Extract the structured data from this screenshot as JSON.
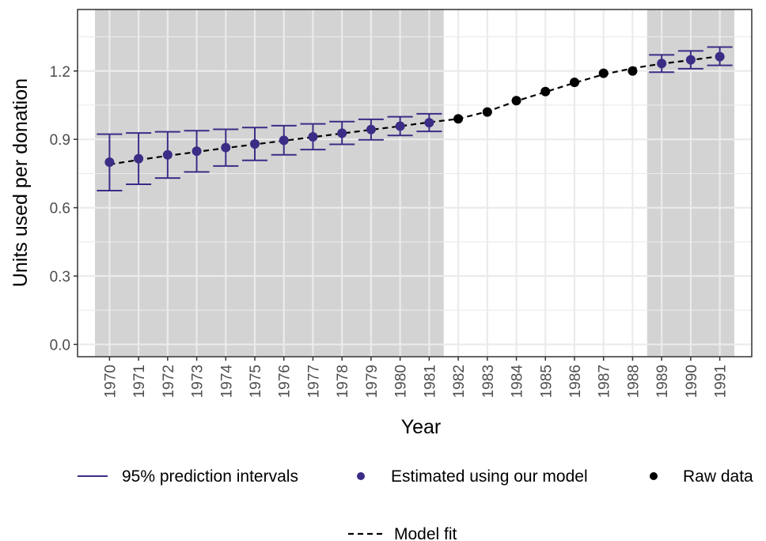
{
  "chart_data": {
    "type": "line",
    "xlabel": "Year",
    "ylabel": "Units used per donation",
    "xlim": [
      1968.9,
      1992.1
    ],
    "ylim": [
      -0.054,
      1.47
    ],
    "yticks": [
      0.0,
      0.3,
      0.6,
      0.9,
      1.2
    ],
    "ytick_labels": [
      "0.0",
      "0.3",
      "0.6",
      "0.9",
      "1.2"
    ],
    "x_categories": [
      "1970",
      "1971",
      "1972",
      "1973",
      "1974",
      "1975",
      "1976",
      "1977",
      "1978",
      "1979",
      "1980",
      "1981",
      "1982",
      "1983",
      "1984",
      "1985",
      "1986",
      "1987",
      "1988",
      "1989",
      "1990",
      "1991"
    ],
    "grid": true,
    "legend_position": "bottom",
    "shaded_regions": [
      {
        "from": 1969.5,
        "to": 1981.5,
        "color": "#d3d3d3"
      },
      {
        "from": 1988.5,
        "to": 1991.5,
        "color": "#d3d3d3"
      }
    ],
    "series": [
      {
        "name": "Estimated using our model",
        "kind": "points_with_intervals",
        "color": "#3b2c86",
        "x": [
          1970,
          1971,
          1972,
          1973,
          1974,
          1975,
          1976,
          1977,
          1978,
          1979,
          1980,
          1981,
          1989,
          1990,
          1991
        ],
        "y": [
          0.8,
          0.815,
          0.832,
          0.848,
          0.864,
          0.88,
          0.896,
          0.911,
          0.927,
          0.943,
          0.958,
          0.973,
          1.233,
          1.249,
          1.263
        ],
        "lower": [
          0.675,
          0.703,
          0.73,
          0.757,
          0.783,
          0.808,
          0.832,
          0.855,
          0.878,
          0.898,
          0.917,
          0.935,
          1.195,
          1.21,
          1.225
        ],
        "upper": [
          0.923,
          0.928,
          0.933,
          0.938,
          0.944,
          0.952,
          0.96,
          0.968,
          0.978,
          0.988,
          0.999,
          1.012,
          1.271,
          1.288,
          1.305
        ]
      },
      {
        "name": "Raw data",
        "kind": "points",
        "color": "#000000",
        "x": [
          1982,
          1983,
          1984,
          1985,
          1986,
          1987,
          1988
        ],
        "y": [
          0.99,
          1.02,
          1.07,
          1.11,
          1.15,
          1.19,
          1.2
        ]
      },
      {
        "name": "Model fit",
        "kind": "dashed_line",
        "color": "#000000",
        "x": [
          1970,
          1971,
          1972,
          1973,
          1974,
          1975,
          1976,
          1977,
          1978,
          1979,
          1980,
          1981,
          1982,
          1983,
          1984,
          1985,
          1986,
          1987,
          1988,
          1989,
          1990,
          1991
        ],
        "y": [
          0.79,
          0.81,
          0.828,
          0.845,
          0.862,
          0.878,
          0.894,
          0.91,
          0.926,
          0.942,
          0.958,
          0.975,
          0.99,
          1.022,
          1.068,
          1.108,
          1.148,
          1.185,
          1.212,
          1.232,
          1.248,
          1.265
        ]
      }
    ],
    "legend": {
      "items": [
        {
          "label": "95% prediction intervals",
          "symbol": "line",
          "color": "#3b2c86"
        },
        {
          "label": "Estimated using our model",
          "symbol": "dot",
          "color": "#3b2c86"
        },
        {
          "label": "Raw data",
          "symbol": "dot",
          "color": "#000000"
        },
        {
          "label": "Model fit",
          "symbol": "dashed",
          "color": "#000000"
        }
      ]
    }
  }
}
